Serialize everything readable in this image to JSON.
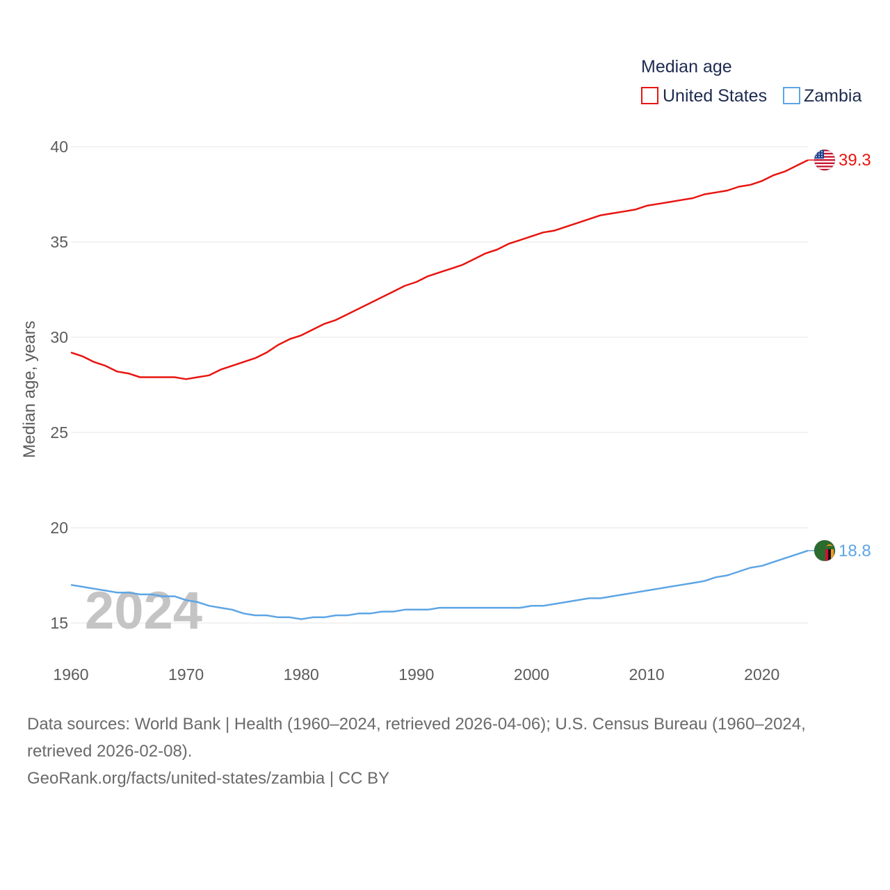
{
  "chart_data": {
    "type": "line",
    "title": "",
    "xlabel": "",
    "ylabel": "Median age, years",
    "xlim": [
      1960,
      2024
    ],
    "ylim": [
      13.5,
      41
    ],
    "xticks": [
      1960,
      1970,
      1980,
      1990,
      2000,
      2010,
      2020
    ],
    "yticks": [
      15,
      20,
      25,
      30,
      35,
      40
    ],
    "year_overlay": "2024",
    "legend": {
      "title": "Median age",
      "position": "top-right"
    },
    "x": [
      1960,
      1961,
      1962,
      1963,
      1964,
      1965,
      1966,
      1967,
      1968,
      1969,
      1970,
      1971,
      1972,
      1973,
      1974,
      1975,
      1976,
      1977,
      1978,
      1979,
      1980,
      1981,
      1982,
      1983,
      1984,
      1985,
      1986,
      1987,
      1988,
      1989,
      1990,
      1991,
      1992,
      1993,
      1994,
      1995,
      1996,
      1997,
      1998,
      1999,
      2000,
      2001,
      2002,
      2003,
      2004,
      2005,
      2006,
      2007,
      2008,
      2009,
      2010,
      2011,
      2012,
      2013,
      2014,
      2015,
      2016,
      2017,
      2018,
      2019,
      2020,
      2021,
      2022,
      2023,
      2024
    ],
    "series": [
      {
        "name": "United States",
        "color": "#e8140f",
        "end_label": "39.3",
        "values": [
          29.2,
          29.0,
          28.7,
          28.5,
          28.2,
          28.1,
          27.9,
          27.9,
          27.9,
          27.9,
          27.8,
          27.9,
          28.0,
          28.3,
          28.5,
          28.7,
          28.9,
          29.2,
          29.6,
          29.9,
          30.1,
          30.4,
          30.7,
          30.9,
          31.2,
          31.5,
          31.8,
          32.1,
          32.4,
          32.7,
          32.9,
          33.2,
          33.4,
          33.6,
          33.8,
          34.1,
          34.4,
          34.6,
          34.9,
          35.1,
          35.3,
          35.5,
          35.6,
          35.8,
          36.0,
          36.2,
          36.4,
          36.5,
          36.6,
          36.7,
          36.9,
          37.0,
          37.1,
          37.2,
          37.3,
          37.5,
          37.6,
          37.7,
          37.9,
          38.0,
          38.2,
          38.5,
          38.7,
          39.0,
          39.3
        ]
      },
      {
        "name": "Zambia",
        "color": "#5da5e5",
        "end_label": "18.8",
        "values": [
          17.0,
          16.9,
          16.8,
          16.7,
          16.6,
          16.6,
          16.5,
          16.5,
          16.4,
          16.4,
          16.2,
          16.1,
          15.9,
          15.8,
          15.7,
          15.5,
          15.4,
          15.4,
          15.3,
          15.3,
          15.2,
          15.3,
          15.3,
          15.4,
          15.4,
          15.5,
          15.5,
          15.6,
          15.6,
          15.7,
          15.7,
          15.7,
          15.8,
          15.8,
          15.8,
          15.8,
          15.8,
          15.8,
          15.8,
          15.8,
          15.9,
          15.9,
          16.0,
          16.1,
          16.2,
          16.3,
          16.3,
          16.4,
          16.5,
          16.6,
          16.7,
          16.8,
          16.9,
          17.0,
          17.1,
          17.2,
          17.4,
          17.5,
          17.7,
          17.9,
          18.0,
          18.2,
          18.4,
          18.6,
          18.8
        ]
      }
    ]
  },
  "footer": {
    "sources_line1": "Data sources: World Bank | Health (1960–2024, retrieved 2026-04-06); U.S. Census Bureau (1960–2024,",
    "sources_line2": "retrieved 2026-02-08).",
    "credit": "GeoRank.org/facts/united-states/zambia | CC BY"
  }
}
